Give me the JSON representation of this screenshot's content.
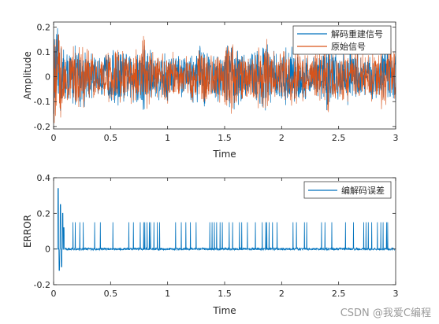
{
  "watermark": "CSDN @我爱C编程",
  "colors": {
    "decoded": "#0072BD",
    "original": "#D95319",
    "error": "#0072BD"
  },
  "chart_data": [
    {
      "type": "line",
      "xlabel": "Time",
      "ylabel": "Amplitude",
      "xlim": [
        0,
        3
      ],
      "ylim": [
        -0.21,
        0.22
      ],
      "xticks": [
        0,
        0.5,
        1,
        1.5,
        2,
        2.5,
        3
      ],
      "xtick_labels": [
        "0",
        "0.5",
        "1",
        "1.5",
        "2",
        "2.5",
        "3"
      ],
      "yticks": [
        -0.2,
        -0.1,
        0,
        0.1,
        0.2
      ],
      "ytick_labels": [
        "-0.2",
        "-0.1",
        "0",
        "0.1",
        "0.2"
      ],
      "legend_position": "top-right",
      "series": [
        {
          "name": "解码重建信号",
          "color": "#0072BD",
          "envelope": {
            "t": [
              0,
              0.05,
              0.1,
              0.25,
              0.4,
              0.55,
              0.65,
              0.8,
              0.9,
              1.0,
              1.15,
              1.3,
              1.4,
              1.55,
              1.7,
              1.85,
              1.95,
              2.1,
              2.25,
              2.4,
              2.5,
              2.6,
              2.75,
              2.9,
              3.0
            ],
            "amp": [
              0.2,
              0.21,
              0.12,
              0.14,
              0.08,
              0.14,
              0.1,
              0.18,
              0.1,
              0.12,
              0.08,
              0.15,
              0.09,
              0.16,
              0.09,
              0.17,
              0.1,
              0.14,
              0.08,
              0.16,
              0.1,
              0.12,
              0.09,
              0.14,
              0.12
            ]
          }
        },
        {
          "name": "原始信号",
          "color": "#D95319",
          "envelope": {
            "t": [
              0,
              0.05,
              0.1,
              0.25,
              0.4,
              0.55,
              0.65,
              0.8,
              0.9,
              1.0,
              1.15,
              1.3,
              1.4,
              1.55,
              1.7,
              1.85,
              1.95,
              2.1,
              2.25,
              2.4,
              2.5,
              2.6,
              2.75,
              2.9,
              3.0
            ],
            "amp": [
              0.2,
              0.21,
              0.12,
              0.14,
              0.08,
              0.14,
              0.1,
              0.18,
              0.1,
              0.12,
              0.08,
              0.15,
              0.09,
              0.16,
              0.09,
              0.17,
              0.1,
              0.14,
              0.08,
              0.16,
              0.1,
              0.12,
              0.09,
              0.14,
              0.12
            ]
          }
        }
      ]
    },
    {
      "type": "line",
      "xlabel": "Time",
      "ylabel": "ERROR",
      "xlim": [
        0,
        3
      ],
      "ylim": [
        -0.2,
        0.4
      ],
      "xticks": [
        0,
        0.5,
        1,
        1.5,
        2,
        2.5,
        3
      ],
      "xtick_labels": [
        "0",
        "0.5",
        "1",
        "1.5",
        "2",
        "2.5",
        "3"
      ],
      "yticks": [
        -0.2,
        0,
        0.2,
        0.4
      ],
      "ytick_labels": [
        "-0.2",
        "0",
        "0.2",
        "0.4"
      ],
      "legend_position": "top-right",
      "series": [
        {
          "name": "编解码误差",
          "color": "#0072BD",
          "startup_burst": {
            "t": [
              0.04,
              0.05,
              0.06,
              0.07,
              0.08,
              0.09
            ],
            "values": [
              0.34,
              -0.12,
              0.25,
              -0.1,
              0.2,
              0.12
            ]
          },
          "spike_height": 0.15,
          "spike_times": [
            0.17,
            0.19,
            0.23,
            0.26,
            0.36,
            0.41,
            0.52,
            0.66,
            0.7,
            0.76,
            0.79,
            0.8,
            0.82,
            0.84,
            0.85,
            0.88,
            0.91,
            0.93,
            1.07,
            1.12,
            1.16,
            1.2,
            1.25,
            1.37,
            1.39,
            1.41,
            1.43,
            1.46,
            1.48,
            1.54,
            1.57,
            1.63,
            1.65,
            1.7,
            1.77,
            1.83,
            1.86,
            1.87,
            1.89,
            1.92,
            1.96,
            2.1,
            2.13,
            2.2,
            2.22,
            2.35,
            2.38,
            2.44,
            2.56,
            2.63,
            2.72,
            2.74,
            2.76,
            2.79,
            2.84,
            2.87,
            2.89,
            2.92,
            2.93
          ]
        }
      ]
    }
  ]
}
